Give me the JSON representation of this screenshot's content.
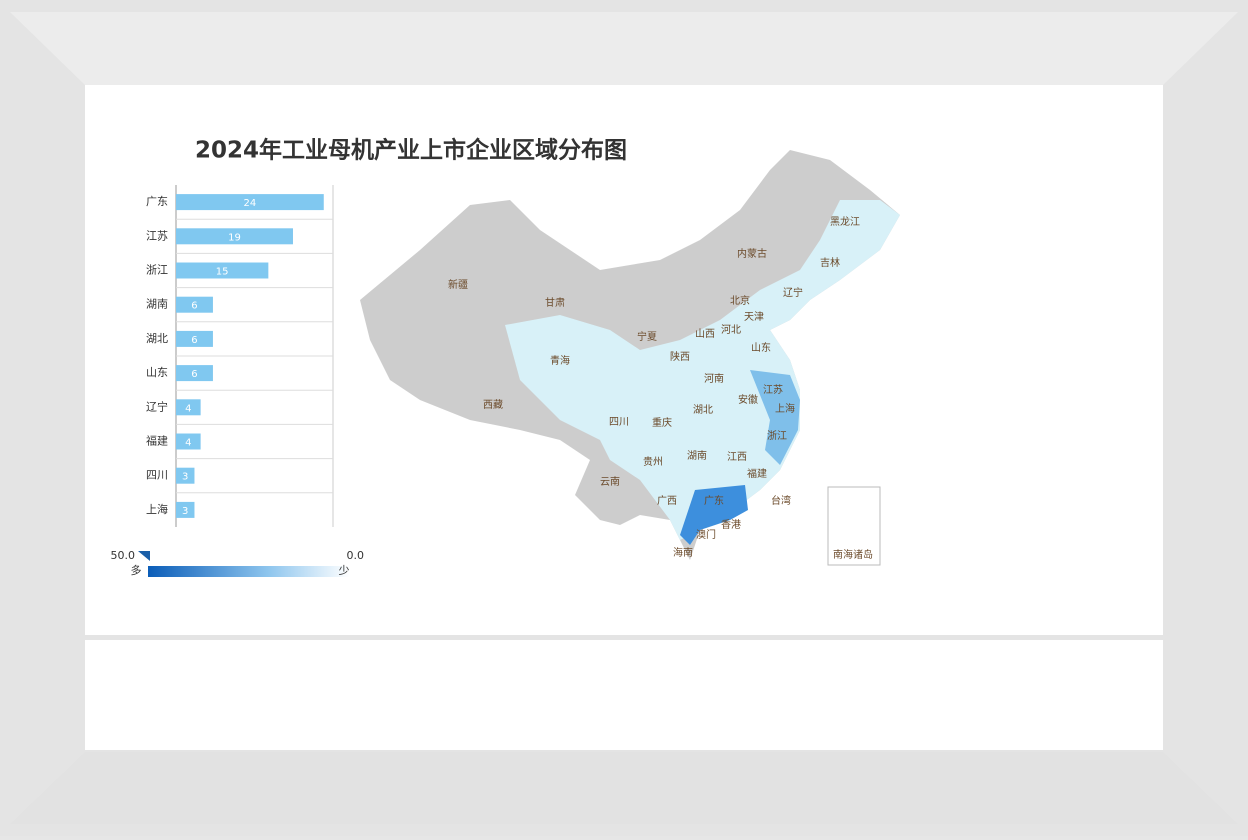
{
  "chart_data": {
    "type": "bar",
    "orientation": "horizontal",
    "title": "2024年工业母机产业上市企业区域分布图",
    "categories": [
      "广东",
      "江苏",
      "浙江",
      "湖南",
      "湖北",
      "山东",
      "辽宁",
      "福建",
      "四川",
      "上海"
    ],
    "values": [
      24,
      19,
      15,
      6,
      6,
      6,
      4,
      4,
      3,
      3
    ],
    "color": "#80c8f0",
    "xlim": [
      0,
      25.5
    ],
    "legend": {
      "max": "50.0",
      "min": "0.0",
      "max_label": "多",
      "min_label": "少"
    },
    "map_labels": [
      "黑龙江",
      "吉林",
      "内蒙古",
      "辽宁",
      "新疆",
      "甘肃",
      "北京",
      "天津",
      "河北",
      "宁夏",
      "山西",
      "山东",
      "青海",
      "陕西",
      "河南",
      "江苏",
      "安徽",
      "上海",
      "西藏",
      "湖北",
      "四川",
      "重庆",
      "浙江",
      "湖南",
      "江西",
      "贵州",
      "福建",
      "云南",
      "台湾",
      "广西",
      "广东",
      "香港",
      "澳门",
      "海南",
      "南海诸岛"
    ]
  }
}
